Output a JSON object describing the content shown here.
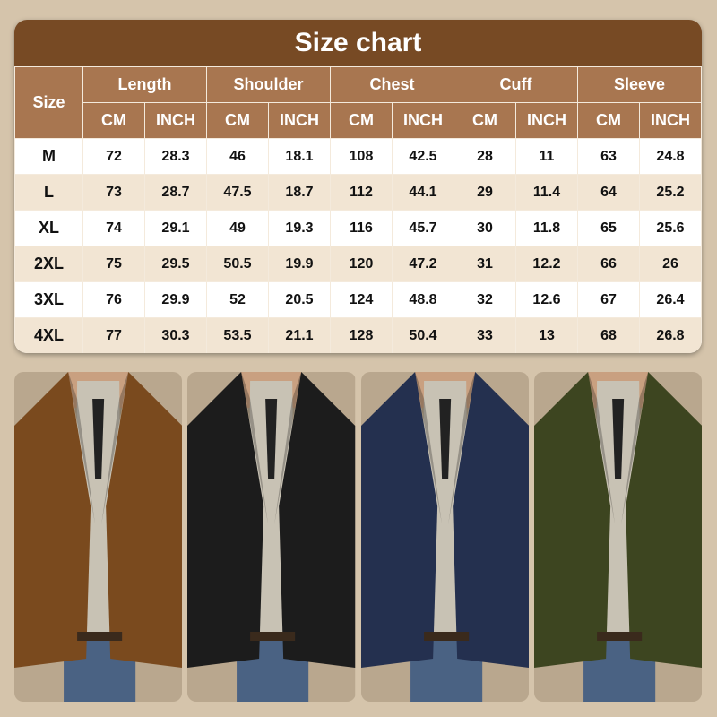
{
  "title": "Size chart",
  "size_header": "Size",
  "groups": [
    "Length",
    "Shoulder",
    "Chest",
    "Cuff",
    "Sleeve"
  ],
  "units": [
    "CM",
    "INCH"
  ],
  "rows": [
    [
      "M",
      "72",
      "28.3",
      "46",
      "18.1",
      "108",
      "42.5",
      "28",
      "11",
      "63",
      "24.8"
    ],
    [
      "L",
      "73",
      "28.7",
      "47.5",
      "18.7",
      "112",
      "44.1",
      "29",
      "11.4",
      "64",
      "25.2"
    ],
    [
      "XL",
      "74",
      "29.1",
      "49",
      "19.3",
      "116",
      "45.7",
      "30",
      "11.8",
      "65",
      "25.6"
    ],
    [
      "2XL",
      "75",
      "29.5",
      "50.5",
      "19.9",
      "120",
      "47.2",
      "31",
      "12.2",
      "66",
      "26"
    ],
    [
      "3XL",
      "76",
      "29.9",
      "52",
      "20.5",
      "124",
      "48.8",
      "32",
      "12.6",
      "67",
      "26.4"
    ],
    [
      "4XL",
      "77",
      "30.3",
      "53.5",
      "21.1",
      "128",
      "50.4",
      "33",
      "13",
      "68",
      "26.8"
    ]
  ],
  "photos": [
    {
      "name": "brown-corduroy-blazer-photo",
      "color": "#7a4a1e"
    },
    {
      "name": "black-corduroy-blazer-photo",
      "color": "#1c1c1c"
    },
    {
      "name": "navy-corduroy-suit-photo",
      "color": "#24304f"
    },
    {
      "name": "olive-corduroy-suit-photo",
      "color": "#3d4520"
    }
  ],
  "colors": {
    "title_bg": "#774a24",
    "header_bg": "#a87650",
    "row_alt": "#f2e5d3",
    "page_bg": "#d5c4ab"
  }
}
